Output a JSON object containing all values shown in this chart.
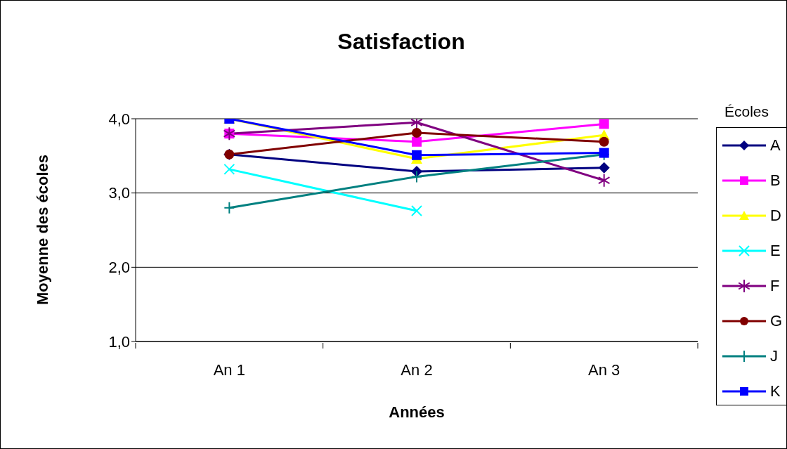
{
  "chart_data": {
    "type": "line",
    "title": "Satisfaction",
    "xlabel": "Années",
    "ylabel": "Moyenne des écoles",
    "legend_title": "Écoles",
    "legend": "right",
    "grid": "y",
    "categories": [
      "An 1",
      "An 2",
      "An 3"
    ],
    "ylim": [
      1,
      4
    ],
    "yticks": [
      {
        "value": 1,
        "label": "1,0"
      },
      {
        "value": 2,
        "label": "2,0"
      },
      {
        "value": 3,
        "label": "3,0"
      },
      {
        "value": 4,
        "label": "4,0"
      }
    ],
    "series": [
      {
        "name": "A",
        "color": "#000080",
        "marker": "diamond",
        "values": [
          3.52,
          3.29,
          3.34
        ]
      },
      {
        "name": "B",
        "color": "#ff00ff",
        "marker": "square",
        "values": [
          3.8,
          3.69,
          3.93
        ]
      },
      {
        "name": "D",
        "color": "#ffff00",
        "marker": "triangle",
        "values": [
          4.0,
          3.46,
          3.78
        ]
      },
      {
        "name": "E",
        "color": "#00ffff",
        "marker": "cross",
        "values": [
          3.32,
          2.76,
          null
        ]
      },
      {
        "name": "F",
        "color": "#800080",
        "marker": "cross",
        "values": [
          3.8,
          3.95,
          3.17
        ]
      },
      {
        "name": "G",
        "color": "#800000",
        "marker": "circle",
        "values": [
          3.52,
          3.81,
          3.69
        ]
      },
      {
        "name": "J",
        "color": "#008080",
        "marker": "plus",
        "values": [
          2.8,
          3.22,
          3.52
        ]
      },
      {
        "name": "K",
        "color": "#0000ff",
        "marker": "square",
        "values": [
          4.0,
          3.51,
          3.54
        ]
      }
    ]
  }
}
